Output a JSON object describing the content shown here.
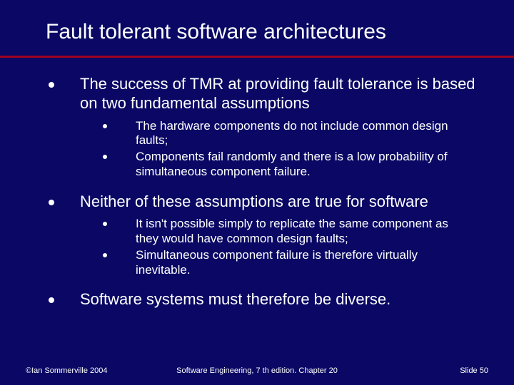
{
  "colors": {
    "background": "#0a0864",
    "text": "#ffffff",
    "rule": "#a00020"
  },
  "title": "Fault tolerant software architectures",
  "bullets": [
    {
      "text": "The success of TMR at providing fault tolerance is based on two fundamental assumptions",
      "sub": [
        "The hardware components do not include common design faults;",
        "Components fail randomly and there is a low probability of simultaneous component failure."
      ]
    },
    {
      "text": "Neither of these assumptions are true for software",
      "sub": [
        "It isn't possible simply to replicate the same component as they would have common design faults;",
        "Simultaneous component failure is therefore virtually inevitable."
      ]
    },
    {
      "text": "Software systems must therefore be diverse.",
      "sub": []
    }
  ],
  "footer": {
    "left": "©Ian Sommerville 2004",
    "center": "Software Engineering, 7 th edition. Chapter 20",
    "right_prefix": "Slide ",
    "right_number": "50"
  }
}
